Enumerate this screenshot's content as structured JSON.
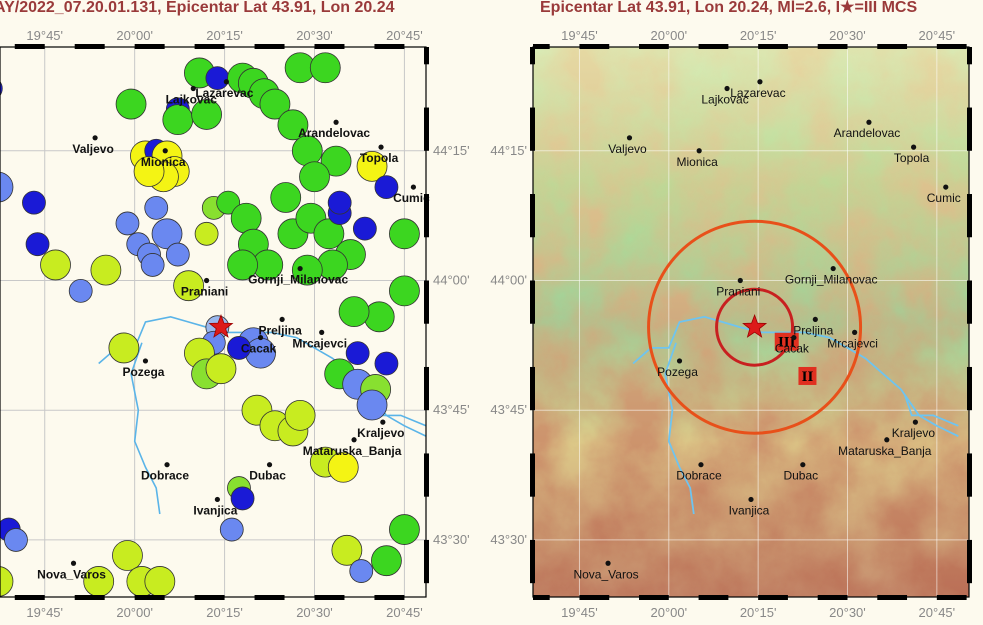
{
  "titles": {
    "left": "AY/2022_07.20.01.131, Epicentar Lat 43.91, Lon 20.24",
    "right": "Epicentar Lat 43.91, Lon 20.24, Ml=2.6, I★=III MCS"
  },
  "ticks": {
    "lon": [
      "19°45'",
      "20°00'",
      "20°15'",
      "20°30'",
      "20°45'"
    ],
    "lat": [
      "44°15'",
      "44°00'",
      "43°45'",
      "43°30'"
    ]
  },
  "places": [
    {
      "id": "lajkovac",
      "name": "Lajkovac",
      "lon": 20.163,
      "lat": 44.37
    },
    {
      "id": "lazarevac",
      "name": "Lazarevac",
      "lon": 20.255,
      "lat": 44.383
    },
    {
      "id": "arandelovac",
      "name": "Arandelovac",
      "lon": 20.56,
      "lat": 44.305
    },
    {
      "id": "valjevo",
      "name": "Valjevo",
      "lon": 19.89,
      "lat": 44.275
    },
    {
      "id": "mionica",
      "name": "Mionica",
      "lon": 20.085,
      "lat": 44.25
    },
    {
      "id": "topola",
      "name": "Topola",
      "lon": 20.685,
      "lat": 44.257
    },
    {
      "id": "cumic",
      "name": "Cumic",
      "lon": 20.775,
      "lat": 44.18
    },
    {
      "id": "praniani",
      "name": "Praniani",
      "lon": 20.2,
      "lat": 44.0
    },
    {
      "id": "gornji-milanovac",
      "name": "Gornji_Milanovac",
      "lon": 20.46,
      "lat": 44.023
    },
    {
      "id": "preljina",
      "name": "Preljina",
      "lon": 20.41,
      "lat": 43.925
    },
    {
      "id": "cacak",
      "name": "Cacak",
      "lon": 20.35,
      "lat": 43.89
    },
    {
      "id": "mrcajevci",
      "name": "Mrcajevci",
      "lon": 20.52,
      "lat": 43.9
    },
    {
      "id": "pozega",
      "name": "Pozega",
      "lon": 20.03,
      "lat": 43.845
    },
    {
      "id": "kraljevo",
      "name": "Kraljevo",
      "lon": 20.69,
      "lat": 43.727
    },
    {
      "id": "mataruska-banja",
      "name": "Mataruska_Banja",
      "lon": 20.61,
      "lat": 43.693
    },
    {
      "id": "dobrace",
      "name": "Dobrace",
      "lon": 20.09,
      "lat": 43.645
    },
    {
      "id": "dubac",
      "name": "Dubac",
      "lon": 20.375,
      "lat": 43.645
    },
    {
      "id": "ivanjica",
      "name": "Ivanjica",
      "lon": 20.23,
      "lat": 43.578
    },
    {
      "id": "nova-varos",
      "name": "Nova_Varos",
      "lon": 19.83,
      "lat": 43.455
    }
  ],
  "epicenter": {
    "lat": 43.91,
    "lon": 20.24
  },
  "intensity_labels": [
    {
      "text": "III",
      "lon": 20.33,
      "lat": 43.882
    },
    {
      "text": "II",
      "lon": 20.388,
      "lat": 43.816
    }
  ],
  "colors": {
    "blue": "#1a1ad6",
    "blueLight": "#6a88f0",
    "blueSky": "#9ab8ee",
    "green": "#3cd620",
    "greenLight": "#88e030",
    "yellowGreen": "#c8ec20",
    "yellow": "#f4f414",
    "epicenter": "#dd1a1a",
    "ringInner": "#c82020",
    "ringOuter": "#e8501a",
    "river": "#5ab4e8",
    "intensityBg": "#e03020"
  },
  "reports": [
    {
      "lon": 19.6,
      "lat": 44.37,
      "c": "blue",
      "s": "s"
    },
    {
      "lon": 19.99,
      "lat": 44.34,
      "c": "green",
      "s": "m"
    },
    {
      "lon": 20.12,
      "lat": 44.33,
      "c": "blue",
      "s": "s"
    },
    {
      "lon": 20.12,
      "lat": 44.31,
      "c": "green",
      "s": "m"
    },
    {
      "lon": 20.2,
      "lat": 44.32,
      "c": "green",
      "s": "m"
    },
    {
      "lon": 20.18,
      "lat": 44.4,
      "c": "green",
      "s": "m"
    },
    {
      "lon": 20.23,
      "lat": 44.39,
      "c": "blue",
      "s": "s"
    },
    {
      "lon": 20.3,
      "lat": 44.39,
      "c": "green",
      "s": "m"
    },
    {
      "lon": 20.33,
      "lat": 44.38,
      "c": "green",
      "s": "m"
    },
    {
      "lon": 20.36,
      "lat": 44.36,
      "c": "green",
      "s": "m"
    },
    {
      "lon": 20.39,
      "lat": 44.34,
      "c": "green",
      "s": "m"
    },
    {
      "lon": 20.46,
      "lat": 44.41,
      "c": "green",
      "s": "m"
    },
    {
      "lon": 20.53,
      "lat": 44.41,
      "c": "green",
      "s": "m"
    },
    {
      "lon": 20.44,
      "lat": 44.3,
      "c": "green",
      "s": "m"
    },
    {
      "lon": 20.48,
      "lat": 44.25,
      "c": "green",
      "s": "m"
    },
    {
      "lon": 20.56,
      "lat": 44.23,
      "c": "green",
      "s": "m"
    },
    {
      "lon": 20.66,
      "lat": 44.22,
      "c": "yellow",
      "s": "m"
    },
    {
      "lon": 20.7,
      "lat": 44.18,
      "c": "blue",
      "s": "s"
    },
    {
      "lon": 20.75,
      "lat": 44.09,
      "c": "green",
      "s": "m"
    },
    {
      "lon": 20.03,
      "lat": 44.24,
      "c": "yellow",
      "s": "m"
    },
    {
      "lon": 20.06,
      "lat": 44.25,
      "c": "blue",
      "s": "s"
    },
    {
      "lon": 20.09,
      "lat": 44.24,
      "c": "yellow",
      "s": "m"
    },
    {
      "lon": 20.11,
      "lat": 44.21,
      "c": "yellow",
      "s": "m"
    },
    {
      "lon": 20.08,
      "lat": 44.2,
      "c": "yellow",
      "s": "m"
    },
    {
      "lon": 20.04,
      "lat": 44.21,
      "c": "yellow",
      "s": "m"
    },
    {
      "lon": 19.62,
      "lat": 44.18,
      "c": "blueLight",
      "s": "m"
    },
    {
      "lon": 19.72,
      "lat": 44.15,
      "c": "blue",
      "s": "s"
    },
    {
      "lon": 19.73,
      "lat": 44.07,
      "c": "blue",
      "s": "s"
    },
    {
      "lon": 19.78,
      "lat": 44.03,
      "c": "yellowGreen",
      "s": "m"
    },
    {
      "lon": 19.85,
      "lat": 43.98,
      "c": "blueLight",
      "s": "s"
    },
    {
      "lon": 19.92,
      "lat": 44.02,
      "c": "yellowGreen",
      "s": "m"
    },
    {
      "lon": 19.98,
      "lat": 44.11,
      "c": "blueLight",
      "s": "s"
    },
    {
      "lon": 20.01,
      "lat": 44.07,
      "c": "blueLight",
      "s": "s"
    },
    {
      "lon": 20.04,
      "lat": 44.05,
      "c": "blueLight",
      "s": "s"
    },
    {
      "lon": 20.06,
      "lat": 44.14,
      "c": "blueLight",
      "s": "s"
    },
    {
      "lon": 20.09,
      "lat": 44.09,
      "c": "blueLight",
      "s": "m"
    },
    {
      "lon": 20.12,
      "lat": 44.05,
      "c": "blueLight",
      "s": "s"
    },
    {
      "lon": 20.05,
      "lat": 44.03,
      "c": "blueLight",
      "s": "s"
    },
    {
      "lon": 20.15,
      "lat": 43.99,
      "c": "yellowGreen",
      "s": "m"
    },
    {
      "lon": 20.2,
      "lat": 44.09,
      "c": "yellowGreen",
      "s": "s"
    },
    {
      "lon": 20.22,
      "lat": 44.14,
      "c": "greenLight",
      "s": "s"
    },
    {
      "lon": 20.26,
      "lat": 44.15,
      "c": "green",
      "s": "s"
    },
    {
      "lon": 20.31,
      "lat": 44.12,
      "c": "green",
      "s": "m"
    },
    {
      "lon": 20.33,
      "lat": 44.07,
      "c": "green",
      "s": "m"
    },
    {
      "lon": 20.37,
      "lat": 44.03,
      "c": "green",
      "s": "m"
    },
    {
      "lon": 20.3,
      "lat": 44.03,
      "c": "green",
      "s": "m"
    },
    {
      "lon": 20.44,
      "lat": 44.09,
      "c": "green",
      "s": "m"
    },
    {
      "lon": 20.49,
      "lat": 44.12,
      "c": "green",
      "s": "m"
    },
    {
      "lon": 20.54,
      "lat": 44.09,
      "c": "green",
      "s": "m"
    },
    {
      "lon": 20.57,
      "lat": 44.13,
      "c": "blue",
      "s": "s"
    },
    {
      "lon": 20.6,
      "lat": 44.05,
      "c": "green",
      "s": "m"
    },
    {
      "lon": 20.55,
      "lat": 44.03,
      "c": "green",
      "s": "m"
    },
    {
      "lon": 20.48,
      "lat": 44.02,
      "c": "green",
      "s": "m"
    },
    {
      "lon": 20.64,
      "lat": 44.1,
      "c": "blue",
      "s": "s"
    },
    {
      "lon": 20.42,
      "lat": 44.16,
      "c": "green",
      "s": "m"
    },
    {
      "lon": 20.5,
      "lat": 44.2,
      "c": "green",
      "s": "m"
    },
    {
      "lon": 20.57,
      "lat": 44.15,
      "c": "blue",
      "s": "s"
    },
    {
      "lon": 20.68,
      "lat": 43.93,
      "c": "green",
      "s": "m"
    },
    {
      "lon": 20.61,
      "lat": 43.94,
      "c": "green",
      "s": "m"
    },
    {
      "lon": 20.75,
      "lat": 43.98,
      "c": "green",
      "s": "m"
    },
    {
      "lon": 20.62,
      "lat": 43.86,
      "c": "blue",
      "s": "s"
    },
    {
      "lon": 20.57,
      "lat": 43.82,
      "c": "green",
      "s": "m"
    },
    {
      "lon": 20.62,
      "lat": 43.8,
      "c": "blueLight",
      "s": "m"
    },
    {
      "lon": 20.67,
      "lat": 43.79,
      "c": "greenLight",
      "s": "m"
    },
    {
      "lon": 20.7,
      "lat": 43.84,
      "c": "blue",
      "s": "s"
    },
    {
      "lon": 20.66,
      "lat": 43.76,
      "c": "blueLight",
      "s": "m"
    },
    {
      "lon": 20.23,
      "lat": 43.91,
      "c": "blueSky",
      "s": "s"
    },
    {
      "lon": 20.22,
      "lat": 43.88,
      "c": "blueLight",
      "s": "s"
    },
    {
      "lon": 20.18,
      "lat": 43.86,
      "c": "yellowGreen",
      "s": "m"
    },
    {
      "lon": 20.2,
      "lat": 43.82,
      "c": "greenLight",
      "s": "m"
    },
    {
      "lon": 20.24,
      "lat": 43.83,
      "c": "yellowGreen",
      "s": "m"
    },
    {
      "lon": 20.33,
      "lat": 43.88,
      "c": "blueLight",
      "s": "m"
    },
    {
      "lon": 20.35,
      "lat": 43.86,
      "c": "blueLight",
      "s": "m"
    },
    {
      "lon": 20.29,
      "lat": 43.87,
      "c": "blue",
      "s": "s"
    },
    {
      "lon": 19.97,
      "lat": 43.87,
      "c": "yellowGreen",
      "s": "m"
    },
    {
      "lon": 20.34,
      "lat": 43.75,
      "c": "yellowGreen",
      "s": "m"
    },
    {
      "lon": 20.39,
      "lat": 43.72,
      "c": "yellowGreen",
      "s": "m"
    },
    {
      "lon": 20.44,
      "lat": 43.71,
      "c": "yellowGreen",
      "s": "m"
    },
    {
      "lon": 20.46,
      "lat": 43.74,
      "c": "yellowGreen",
      "s": "m"
    },
    {
      "lon": 20.53,
      "lat": 43.65,
      "c": "yellowGreen",
      "s": "m"
    },
    {
      "lon": 20.58,
      "lat": 43.64,
      "c": "yellow",
      "s": "m"
    },
    {
      "lon": 20.29,
      "lat": 43.6,
      "c": "greenLight",
      "s": "s"
    },
    {
      "lon": 20.3,
      "lat": 43.58,
      "c": "blue",
      "s": "s"
    },
    {
      "lon": 20.27,
      "lat": 43.52,
      "c": "blueLight",
      "s": "s"
    },
    {
      "lon": 20.59,
      "lat": 43.48,
      "c": "yellowGreen",
      "s": "m"
    },
    {
      "lon": 20.63,
      "lat": 43.44,
      "c": "blueLight",
      "s": "s"
    },
    {
      "lon": 20.7,
      "lat": 43.46,
      "c": "green",
      "s": "m"
    },
    {
      "lon": 20.75,
      "lat": 43.52,
      "c": "green",
      "s": "m"
    },
    {
      "lon": 19.6,
      "lat": 43.52,
      "c": "blue",
      "s": "s"
    },
    {
      "lon": 19.65,
      "lat": 43.52,
      "c": "blue",
      "s": "s"
    },
    {
      "lon": 19.67,
      "lat": 43.5,
      "c": "blueLight",
      "s": "s"
    },
    {
      "lon": 19.62,
      "lat": 43.42,
      "c": "yellowGreen",
      "s": "m"
    },
    {
      "lon": 19.9,
      "lat": 43.42,
      "c": "yellowGreen",
      "s": "m"
    },
    {
      "lon": 19.98,
      "lat": 43.47,
      "c": "yellowGreen",
      "s": "m"
    },
    {
      "lon": 20.02,
      "lat": 43.42,
      "c": "yellowGreen",
      "s": "m"
    },
    {
      "lon": 20.07,
      "lat": 43.42,
      "c": "yellowGreen",
      "s": "m"
    }
  ]
}
